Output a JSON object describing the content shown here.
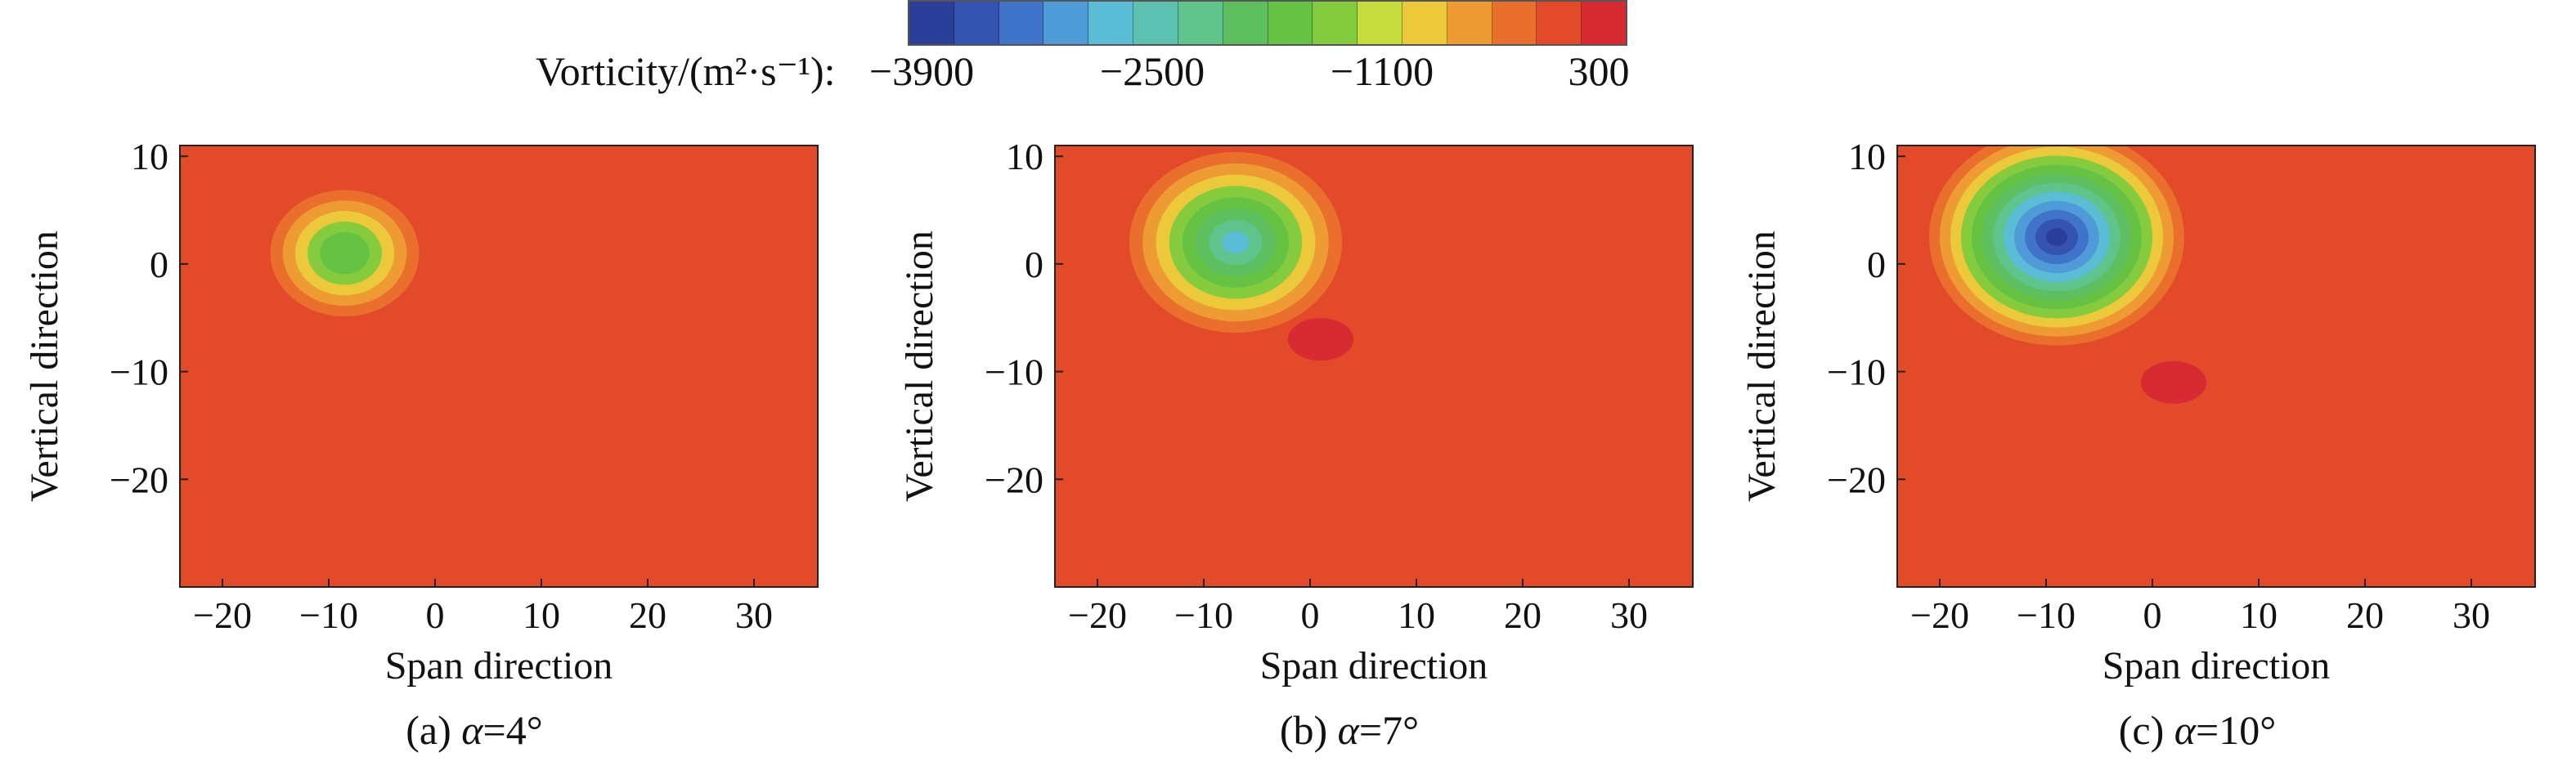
{
  "colorbar": {
    "label": "Vorticity/(m²·s⁻¹):",
    "ticks": [
      "−3900",
      "−2500",
      "−1100",
      "300"
    ],
    "tick_values": [
      -3900,
      -2500,
      -1100,
      300
    ],
    "colors": [
      "#2b3f9a",
      "#3553b0",
      "#3f74c8",
      "#4f9bd8",
      "#5bbcd6",
      "#5cc1b0",
      "#5ec48c",
      "#5dbf5f",
      "#66c243",
      "#84cb3e",
      "#c6dc3c",
      "#ecc93a",
      "#ee9b33",
      "#ea6f2d",
      "#e24a2a",
      "#d82a33"
    ]
  },
  "chart_data": [
    {
      "type": "heatmap",
      "caption_prefix": "(a) ",
      "caption_symbol": "α",
      "caption_value": "=4°",
      "xlabel": "Span direction",
      "ylabel": "Vertical direction",
      "xlim": [
        -24,
        36
      ],
      "ylim": [
        -30,
        11
      ],
      "xticks": [
        "−20",
        "−10",
        "0",
        "10",
        "20",
        "30"
      ],
      "xtick_values": [
        -20,
        -10,
        0,
        10,
        20,
        30
      ],
      "yticks": [
        "10",
        "0",
        "−10",
        "−20"
      ],
      "ytick_values": [
        10,
        0,
        -10,
        -20
      ],
      "background_vorticity": 0,
      "vortex": {
        "x": -8.5,
        "y": 1,
        "core_vorticity": -1700,
        "radius": 7
      },
      "secondary_region": null
    },
    {
      "type": "heatmap",
      "caption_prefix": "(b) ",
      "caption_symbol": "α",
      "caption_value": "=7°",
      "xlabel": "Span direction",
      "ylabel": "Vertical direction",
      "xlim": [
        -24,
        36
      ],
      "ylim": [
        -30,
        11
      ],
      "xticks": [
        "−20",
        "−10",
        "0",
        "10",
        "20",
        "30"
      ],
      "xtick_values": [
        -20,
        -10,
        0,
        10,
        20,
        30
      ],
      "yticks": [
        "10",
        "0",
        "−10",
        "−20"
      ],
      "ytick_values": [
        10,
        0,
        -10,
        -20
      ],
      "background_vorticity": 0,
      "vortex": {
        "x": -7,
        "y": 2,
        "core_vorticity": -2600,
        "radius": 10
      },
      "secondary_region": {
        "x": 1,
        "y": -7,
        "vorticity": 250
      }
    },
    {
      "type": "heatmap",
      "caption_prefix": "(c) ",
      "caption_symbol": "α",
      "caption_value": "=10°",
      "xlabel": "Span direction",
      "ylabel": "Vertical direction",
      "xlim": [
        -24,
        36
      ],
      "ylim": [
        -30,
        11
      ],
      "xticks": [
        "−20",
        "−10",
        "0",
        "10",
        "20",
        "30"
      ],
      "xtick_values": [
        -20,
        -10,
        0,
        10,
        20,
        30
      ],
      "yticks": [
        "10",
        "0",
        "−10",
        "−20"
      ],
      "ytick_values": [
        10,
        0,
        -10,
        -20
      ],
      "background_vorticity": 0,
      "vortex": {
        "x": -9,
        "y": 2.5,
        "core_vorticity": -3700,
        "radius": 12
      },
      "secondary_region": {
        "x": 2,
        "y": -11,
        "vorticity": 260
      }
    }
  ]
}
